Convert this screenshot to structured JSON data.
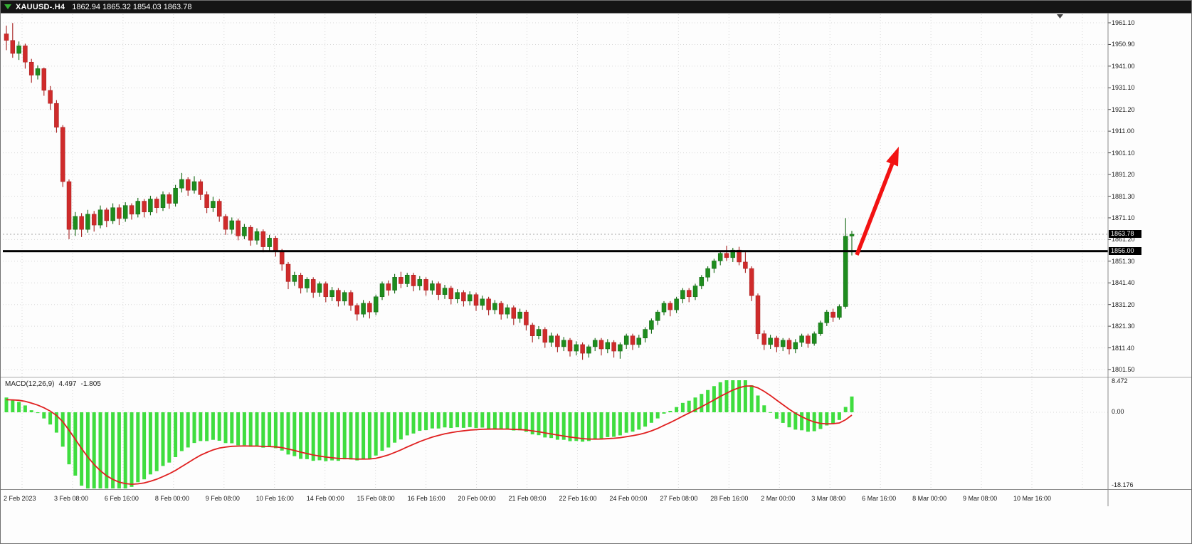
{
  "title_bar": {
    "symbol": "XAUUSD-.H4",
    "ohlc": "1862.94 1865.32 1854.03 1863.78"
  },
  "price_tags": {
    "current": "1863.78",
    "line": "1856.00"
  },
  "macd": {
    "label": "MACD(12,26,9)",
    "main_value": "4.497",
    "signal_value": "-1.805",
    "y_ticks": [
      "8.472",
      "0.00",
      "-18.176"
    ]
  },
  "colors": {
    "background": "#fdfdfd",
    "grid": "#d8d8d8",
    "bull": "#1e8c1e",
    "bear": "#cf2b2b",
    "wick_bull": "#116611",
    "wick_bear": "#a61f1f",
    "macd_histogram": "#3fdd3f",
    "macd_signal": "#e02020",
    "hline": "#000000",
    "current_price_line": "#a8a8a8",
    "arrow": "#f21212",
    "tag_bg": "#000000",
    "tag_text": "#ffffff",
    "title_bg": "#151515",
    "axis_text": "#1a1a1a"
  },
  "chart_data": [
    {
      "type": "candlestick",
      "title": "XAUUSD- H4 candlestick chart",
      "symbol": "XAUUSD-",
      "timeframe": "H4",
      "y_ticks": [
        "1961.10",
        "1950.90",
        "1941.00",
        "1931.10",
        "1921.20",
        "1911.00",
        "1901.10",
        "1891.20",
        "1881.30",
        "1871.10",
        "1861.20",
        "1851.30",
        "1841.40",
        "1831.20",
        "1821.30",
        "1811.40",
        "1801.50"
      ],
      "x_labels": [
        "2 Feb 2023",
        "3 Feb 08:00",
        "6 Feb 16:00",
        "8 Feb 00:00",
        "9 Feb 08:00",
        "10 Feb 16:00",
        "14 Feb 00:00",
        "15 Feb 08:00",
        "16 Feb 16:00",
        "20 Feb 00:00",
        "21 Feb 08:00",
        "22 Feb 16:00",
        "24 Feb 00:00",
        "27 Feb 08:00",
        "28 Feb 16:00",
        "2 Mar 00:00",
        "3 Mar 08:00",
        "6 Mar 16:00",
        "8 Mar 00:00",
        "9 Mar 08:00",
        "10 Mar 16:00"
      ],
      "y_range_approx": [
        1798,
        1965
      ],
      "current_price": 1863.78,
      "horizontal_line_price": 1856.0,
      "annotations": [
        {
          "type": "arrow",
          "color": "#f21212",
          "description": "thick red arrow drawn from just right of the last candle (~1854) pointing up-right toward ~1905"
        }
      ],
      "ohlc": [
        [
          1956,
          1959.8,
          1948.5,
          1953
        ],
        [
          1953,
          1961,
          1945,
          1947
        ],
        [
          1947,
          1952.5,
          1944,
          1950.5
        ],
        [
          1950.5,
          1951.5,
          1940,
          1943
        ],
        [
          1943,
          1944.5,
          1933.5,
          1937
        ],
        [
          1937,
          1941.5,
          1935,
          1940
        ],
        [
          1940,
          1940.5,
          1927.5,
          1930
        ],
        [
          1930,
          1932,
          1921,
          1924
        ],
        [
          1924,
          1925.5,
          1910.5,
          1913
        ],
        [
          1913,
          1914,
          1885.5,
          1888
        ],
        [
          1888,
          1889,
          1861.5,
          1866
        ],
        [
          1866,
          1874,
          1863,
          1872
        ],
        [
          1872,
          1873.5,
          1862.5,
          1866
        ],
        [
          1866,
          1875,
          1864.5,
          1873
        ],
        [
          1873,
          1874.5,
          1865,
          1868
        ],
        [
          1868,
          1877,
          1866.5,
          1875
        ],
        [
          1875,
          1876,
          1867,
          1870
        ],
        [
          1870,
          1878,
          1868.5,
          1876
        ],
        [
          1876,
          1877.5,
          1868,
          1871
        ],
        [
          1871,
          1878.5,
          1869.5,
          1877
        ],
        [
          1877,
          1878,
          1870.5,
          1873
        ],
        [
          1873,
          1880.5,
          1871.5,
          1879
        ],
        [
          1879,
          1880,
          1871.5,
          1874
        ],
        [
          1874,
          1881.5,
          1872.5,
          1880
        ],
        [
          1880,
          1881,
          1873.5,
          1876
        ],
        [
          1876,
          1883.5,
          1874.5,
          1882
        ],
        [
          1882,
          1883,
          1875.5,
          1878
        ],
        [
          1878,
          1886.5,
          1876.5,
          1885
        ],
        [
          1885,
          1892,
          1883,
          1889
        ],
        [
          1889,
          1890,
          1881.5,
          1884
        ],
        [
          1884,
          1890.5,
          1882.5,
          1888
        ],
        [
          1888,
          1889,
          1879.5,
          1882
        ],
        [
          1882,
          1883.5,
          1873.5,
          1876
        ],
        [
          1876,
          1881,
          1874,
          1879
        ],
        [
          1879,
          1880,
          1869.5,
          1872
        ],
        [
          1872,
          1873,
          1863.5,
          1866
        ],
        [
          1866,
          1871.5,
          1864,
          1870
        ],
        [
          1870,
          1871,
          1861,
          1863
        ],
        [
          1863,
          1868.5,
          1861.5,
          1867
        ],
        [
          1867,
          1868,
          1858.5,
          1861
        ],
        [
          1861,
          1866.5,
          1859,
          1865
        ],
        [
          1865,
          1866,
          1855.5,
          1858
        ],
        [
          1858,
          1863.5,
          1856,
          1862
        ],
        [
          1862,
          1863,
          1853.5,
          1856
        ],
        [
          1856,
          1857,
          1847,
          1850
        ],
        [
          1850,
          1851,
          1838.5,
          1842
        ],
        [
          1842,
          1846.5,
          1840,
          1845
        ],
        [
          1845,
          1846,
          1836.5,
          1839
        ],
        [
          1839,
          1844,
          1837,
          1843
        ],
        [
          1843,
          1844,
          1834.5,
          1837
        ],
        [
          1837,
          1842,
          1835,
          1841
        ],
        [
          1841,
          1842,
          1832.5,
          1835
        ],
        [
          1835,
          1839.5,
          1833,
          1838
        ],
        [
          1838,
          1839,
          1830.5,
          1833
        ],
        [
          1833,
          1838,
          1831,
          1837
        ],
        [
          1837,
          1838,
          1828.5,
          1831
        ],
        [
          1831,
          1832,
          1824,
          1827
        ],
        [
          1827,
          1833.5,
          1825.5,
          1832
        ],
        [
          1832,
          1833,
          1825,
          1828
        ],
        [
          1828,
          1836,
          1826.5,
          1835
        ],
        [
          1835,
          1842,
          1833.5,
          1841
        ],
        [
          1841,
          1842.5,
          1835.5,
          1838
        ],
        [
          1838,
          1845.5,
          1836.5,
          1844
        ],
        [
          1844,
          1846.5,
          1839,
          1841
        ],
        [
          1841,
          1846,
          1839.5,
          1845
        ],
        [
          1845,
          1846,
          1837.5,
          1840
        ],
        [
          1840,
          1844.5,
          1838,
          1843
        ],
        [
          1843,
          1844,
          1835.5,
          1838
        ],
        [
          1838,
          1842.5,
          1836,
          1841
        ],
        [
          1841,
          1842,
          1833.5,
          1836
        ],
        [
          1836,
          1840.5,
          1834,
          1839
        ],
        [
          1839,
          1840,
          1831.5,
          1834
        ],
        [
          1834,
          1838.5,
          1832,
          1837
        ],
        [
          1837,
          1838,
          1830.5,
          1833
        ],
        [
          1833,
          1837.5,
          1831,
          1836
        ],
        [
          1836,
          1837,
          1828.5,
          1831
        ],
        [
          1831,
          1835.5,
          1829,
          1834
        ],
        [
          1834,
          1835,
          1826.5,
          1829
        ],
        [
          1829,
          1833.5,
          1827,
          1832
        ],
        [
          1832,
          1833,
          1824.5,
          1827
        ],
        [
          1827,
          1831.5,
          1825,
          1830
        ],
        [
          1830,
          1831,
          1822,
          1825
        ],
        [
          1825,
          1829.5,
          1823,
          1828
        ],
        [
          1828,
          1829,
          1819.5,
          1822
        ],
        [
          1822,
          1823,
          1814,
          1817
        ],
        [
          1817,
          1821.5,
          1815.5,
          1820
        ],
        [
          1820,
          1821,
          1811.5,
          1814
        ],
        [
          1814,
          1818.5,
          1812,
          1817
        ],
        [
          1817,
          1818,
          1809.5,
          1812
        ],
        [
          1812,
          1816.5,
          1810,
          1815
        ],
        [
          1815,
          1816,
          1807.5,
          1810
        ],
        [
          1810,
          1814.5,
          1808,
          1813
        ],
        [
          1813,
          1814,
          1806,
          1809
        ],
        [
          1809,
          1813,
          1807,
          1812
        ],
        [
          1812,
          1816,
          1810,
          1815
        ],
        [
          1815,
          1816,
          1808,
          1811
        ],
        [
          1811,
          1815.5,
          1809,
          1814
        ],
        [
          1814,
          1815,
          1807,
          1810
        ],
        [
          1810,
          1814,
          1806.5,
          1813
        ],
        [
          1813,
          1818,
          1811,
          1817
        ],
        [
          1817,
          1818,
          1810.5,
          1813
        ],
        [
          1813,
          1817.5,
          1811.5,
          1816
        ],
        [
          1816,
          1821,
          1814,
          1820
        ],
        [
          1820,
          1825,
          1818,
          1824
        ],
        [
          1824,
          1829,
          1822,
          1828
        ],
        [
          1828,
          1833,
          1826.5,
          1832
        ],
        [
          1832,
          1833,
          1826,
          1829
        ],
        [
          1829,
          1835,
          1827.5,
          1834
        ],
        [
          1834,
          1839,
          1832,
          1838
        ],
        [
          1838,
          1839,
          1832.5,
          1835
        ],
        [
          1835,
          1841,
          1833.5,
          1840
        ],
        [
          1840,
          1845,
          1838.5,
          1844
        ],
        [
          1844,
          1849,
          1842,
          1848
        ],
        [
          1848,
          1852.5,
          1846,
          1851.5
        ],
        [
          1851.5,
          1856,
          1849.5,
          1855
        ],
        [
          1855,
          1858.5,
          1851.5,
          1853
        ],
        [
          1853,
          1857.5,
          1851,
          1856.5
        ],
        [
          1856.5,
          1858,
          1849.5,
          1851
        ],
        [
          1851,
          1855.5,
          1846,
          1848
        ],
        [
          1848,
          1849,
          1833,
          1835.5
        ],
        [
          1835.5,
          1836.5,
          1815.5,
          1818
        ],
        [
          1818,
          1819.5,
          1810.5,
          1813
        ],
        [
          1813,
          1817.5,
          1811,
          1816
        ],
        [
          1816,
          1817,
          1809.5,
          1812
        ],
        [
          1812,
          1816,
          1810,
          1815
        ],
        [
          1815,
          1816,
          1808.5,
          1811
        ],
        [
          1811,
          1815.5,
          1809,
          1814
        ],
        [
          1814,
          1818,
          1812,
          1817
        ],
        [
          1817,
          1818,
          1811.5,
          1813.5
        ],
        [
          1813.5,
          1819,
          1812.5,
          1818
        ],
        [
          1818,
          1824,
          1817,
          1823
        ],
        [
          1823,
          1829,
          1821.5,
          1828
        ],
        [
          1828,
          1829.5,
          1823.5,
          1825.5
        ],
        [
          1825.5,
          1831.5,
          1824.5,
          1830.5
        ],
        [
          1830.5,
          1871.2,
          1829.5,
          1862.9
        ],
        [
          1862.94,
          1865.32,
          1854.03,
          1863.78
        ]
      ]
    },
    {
      "type": "bar",
      "name": "MACD(12,26,9)",
      "params": [
        12,
        26,
        9
      ],
      "current_macd": 4.497,
      "current_signal": -1.805,
      "y_ticks": [
        "8.472",
        "0.00",
        "-18.176"
      ],
      "histogram_color": "#3fdd3f",
      "signal_color": "#e02020",
      "note": "green histogram (MACD main) and red signal line derived from the candlestick closes with EMA periods 12/26/9"
    }
  ]
}
